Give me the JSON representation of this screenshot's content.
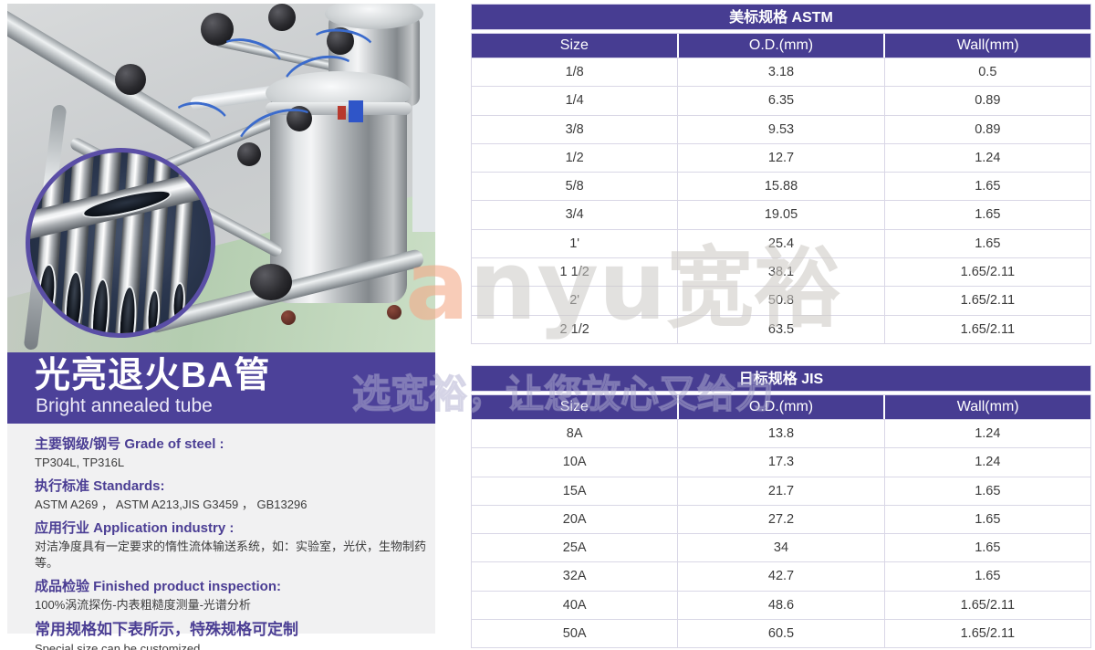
{
  "banner": {
    "title_cn": "光亮退火BA管",
    "title_en": "Bright annealed tube"
  },
  "info": {
    "sections": [
      {
        "heading": "主要钢级/钢号  Grade of steel :",
        "body": "TP304L, TP316L"
      },
      {
        "heading": "执行标准  Standards:",
        "body": "ASTM A269 ， ASTM A213,JIS G3459 ， GB13296"
      },
      {
        "heading": "应用行业  Application industry :",
        "body": "对洁净度具有一定要求的惰性流体输送系统，如：实验室，光伏，生物制药等。"
      },
      {
        "heading": "成品检验  Finished product inspection:",
        "body": "100%涡流探伤-内表粗糙度测量-光谱分析"
      },
      {
        "heading": "常用规格如下表所示，特殊规格可定制",
        "body": "Special size can be customized"
      }
    ]
  },
  "tables": [
    {
      "title": "美标规格 ASTM",
      "columns": [
        "Size",
        "O.D.(mm)",
        "Wall(mm)"
      ],
      "rows": [
        [
          "1/8",
          "3.18",
          "0.5"
        ],
        [
          "1/4",
          "6.35",
          "0.89"
        ],
        [
          "3/8",
          "9.53",
          "0.89"
        ],
        [
          "1/2",
          "12.7",
          "1.24"
        ],
        [
          "5/8",
          "15.88",
          "1.65"
        ],
        [
          "3/4",
          "19.05",
          "1.65"
        ],
        [
          "1'",
          "25.4",
          "1.65"
        ],
        [
          "1 1/2",
          "38.1",
          "1.65/2.11"
        ],
        [
          "2'",
          "50.8",
          "1.65/2.11"
        ],
        [
          "2 1/2",
          "63.5",
          "1.65/2.11"
        ]
      ]
    },
    {
      "title": "日标规格 JIS",
      "columns": [
        "Size",
        "O.D.(mm)",
        "Wall(mm)"
      ],
      "rows": [
        [
          "8A",
          "13.8",
          "1.24"
        ],
        [
          "10A",
          "17.3",
          "1.24"
        ],
        [
          "15A",
          "21.7",
          "1.65"
        ],
        [
          "20A",
          "27.2",
          "1.65"
        ],
        [
          "25A",
          "34",
          "1.65"
        ],
        [
          "32A",
          "42.7",
          "1.65"
        ],
        [
          "40A",
          "48.6",
          "1.65/2.11"
        ],
        [
          "50A",
          "60.5",
          "1.65/2.11"
        ]
      ]
    }
  ],
  "watermark": {
    "logo_a": "a",
    "logo_rest": "nyu",
    "logo_cjk": "宽裕",
    "slogan": "选宽裕，让您放心又给力"
  },
  "colors": {
    "table_purple": "#473d92",
    "banner_purple": "#4c4199",
    "row_line": "#d9d7e6",
    "panel_bg": "#f1f1f2",
    "heading_text": "#4b3e94"
  }
}
